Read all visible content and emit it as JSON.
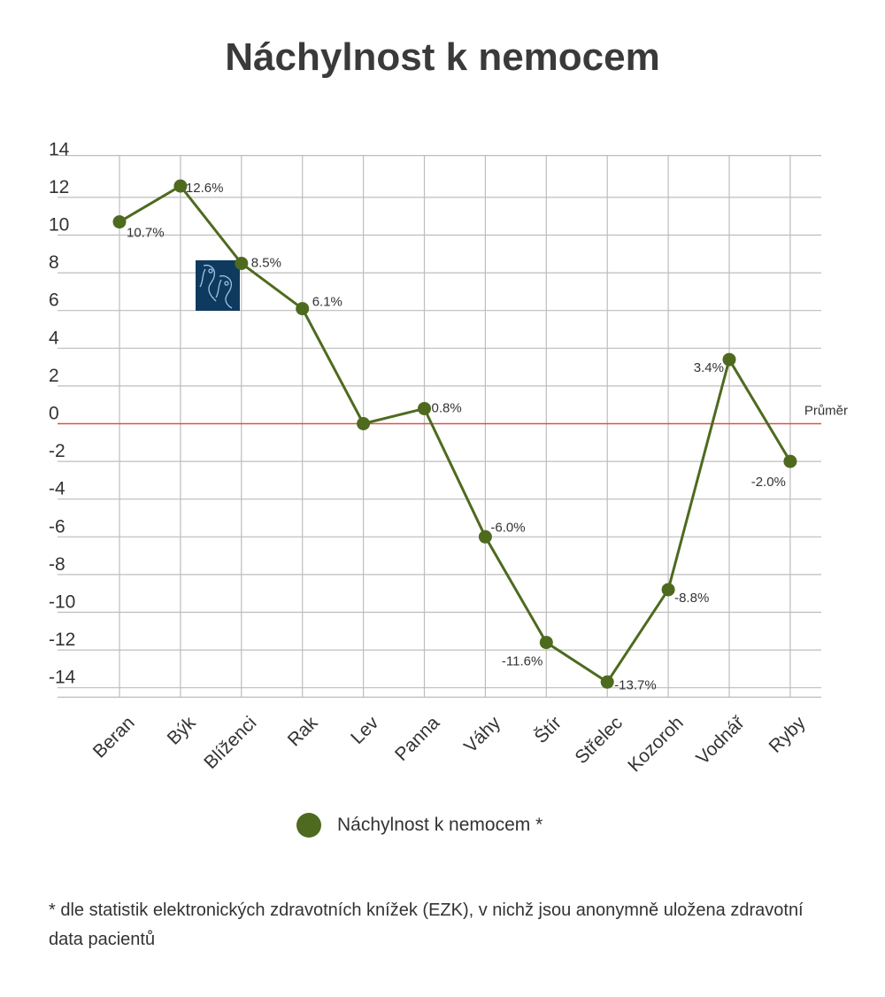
{
  "chart_data": {
    "type": "line",
    "title": "Náchylnost k nemocem",
    "categories": [
      "Beran",
      "Býk",
      "Blíženci",
      "Rak",
      "Lev",
      "Panna",
      "Váhy",
      "Štír",
      "Střelec",
      "Kozoroh",
      "Vodnář",
      "Ryby"
    ],
    "series": [
      {
        "name": "Náchylnost k nemocem *",
        "values": [
          10.7,
          12.6,
          8.5,
          6.1,
          0.0,
          0.8,
          -6.0,
          -11.6,
          -13.7,
          -8.8,
          3.4,
          -2.0
        ],
        "labels": [
          "10.7%",
          "12.6%",
          "8.5%",
          "6.1%",
          "",
          "0.8%",
          "-6.0%",
          "-11.6%",
          "-13.7%",
          "-8.8%",
          "3.4%",
          "-2.0%"
        ]
      }
    ],
    "yticks": [
      14,
      12,
      10,
      8,
      6,
      4,
      2,
      0,
      -2,
      -4,
      -6,
      -8,
      -10,
      -12,
      -14
    ],
    "ylim": [
      -14.5,
      14.5
    ],
    "grid": true,
    "reference_line": {
      "value": 0,
      "label": "Průměr"
    },
    "legend_position": "bottom",
    "colors": {
      "series": "#4e6a1f",
      "reference": "#d9534f",
      "grid": "#bdbdbd",
      "icon_bg": "#0f3a5f"
    }
  },
  "legend": {
    "label": "Náchylnost k nemocem *"
  },
  "footnote": "* dle statistik elektronických zdravotních knížek (EZK), v nichž jsou anonymně uložena zdravotní data pacientů",
  "icon": {
    "name": "gemini-zodiac-icon"
  }
}
